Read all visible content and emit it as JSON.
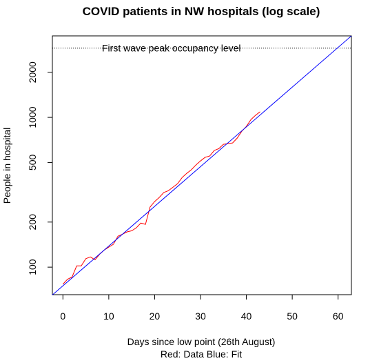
{
  "chart_data": {
    "type": "line",
    "title": "COVID patients in NW hospitals (log scale)",
    "x_label": "Days since low point (26th August)",
    "subtitle": "Red: Data    Blue: Fit",
    "y_label": "People in hospital",
    "log_y": true,
    "xlim": [
      -2.3,
      62.9
    ],
    "ylim": [
      65.5,
      3500
    ],
    "xticks": [
      0,
      10,
      20,
      30,
      40,
      50,
      60
    ],
    "yticks": [
      100,
      200,
      500,
      1000,
      2000
    ],
    "series": [
      {
        "name": "Data",
        "color": "#ff0000",
        "x": [
          0,
          1,
          2,
          3,
          4,
          5,
          6,
          7,
          8,
          9,
          10,
          11,
          12,
          13,
          14,
          15,
          16,
          17,
          18,
          19,
          20,
          21,
          22,
          23,
          24,
          25,
          26,
          27,
          28,
          29,
          30,
          31,
          32,
          33,
          34,
          35,
          36,
          37,
          38,
          39,
          40,
          41,
          42,
          43
        ],
        "values": [
          77,
          83,
          86,
          102,
          102,
          114,
          117,
          112,
          122,
          130,
          136,
          142,
          161,
          166,
          172,
          175,
          183,
          197,
          193,
          252,
          274,
          292,
          315,
          324,
          342,
          361,
          397,
          423,
          447,
          481,
          512,
          541,
          552,
          601,
          619,
          661,
          668,
          675,
          727,
          808,
          870,
          967,
          1033,
          1090
        ]
      },
      {
        "name": "Fit",
        "color": "#0000ff",
        "x": [
          -2.3,
          62.9
        ],
        "values": [
          65.2,
          3500
        ]
      }
    ],
    "annotations": [
      {
        "text": "First wave peak occupancy level",
        "y": 2900
      }
    ]
  }
}
